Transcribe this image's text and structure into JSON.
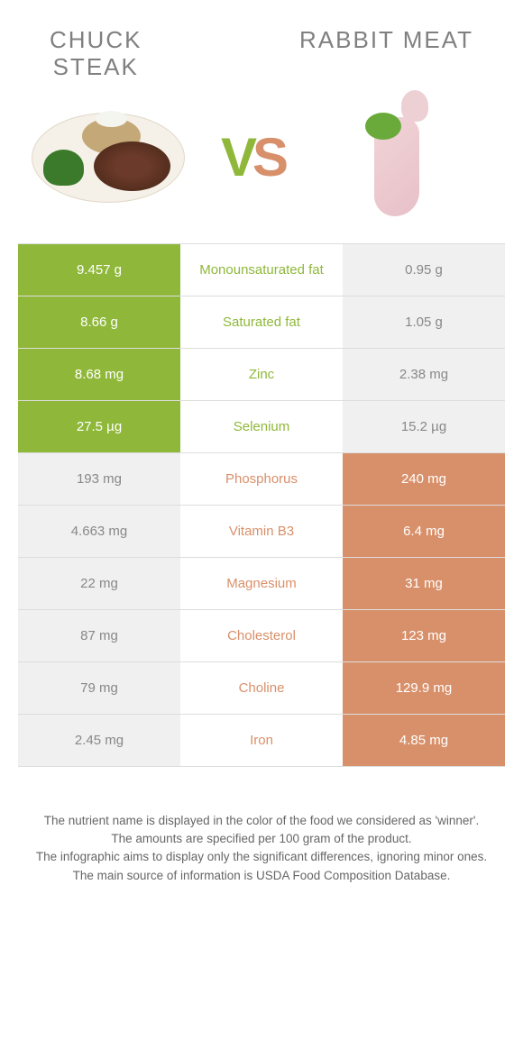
{
  "header": {
    "left_title_line1": "CHUCK",
    "left_title_line2": "STEAK",
    "right_title": "RABBIT MEAT",
    "vs_v": "V",
    "vs_s": "S"
  },
  "colors": {
    "left_color": "#8fb83a",
    "right_color": "#d8906a",
    "lightgray": "#f0f0f0",
    "text_gray": "#888888"
  },
  "rows": [
    {
      "nutrient": "Monounsaturated fat",
      "left": "9.457 g",
      "right": "0.95 g",
      "winner": "left"
    },
    {
      "nutrient": "Saturated fat",
      "left": "8.66 g",
      "right": "1.05 g",
      "winner": "left"
    },
    {
      "nutrient": "Zinc",
      "left": "8.68 mg",
      "right": "2.38 mg",
      "winner": "left"
    },
    {
      "nutrient": "Selenium",
      "left": "27.5 µg",
      "right": "15.2 µg",
      "winner": "left"
    },
    {
      "nutrient": "Phosphorus",
      "left": "193 mg",
      "right": "240 mg",
      "winner": "right"
    },
    {
      "nutrient": "Vitamin B3",
      "left": "4.663 mg",
      "right": "6.4 mg",
      "winner": "right"
    },
    {
      "nutrient": "Magnesium",
      "left": "22 mg",
      "right": "31 mg",
      "winner": "right"
    },
    {
      "nutrient": "Cholesterol",
      "left": "87 mg",
      "right": "123 mg",
      "winner": "right"
    },
    {
      "nutrient": "Choline",
      "left": "79 mg",
      "right": "129.9 mg",
      "winner": "right"
    },
    {
      "nutrient": "Iron",
      "left": "2.45 mg",
      "right": "4.85 mg",
      "winner": "right"
    }
  ],
  "footer": {
    "line1": "The nutrient name is displayed in the color of the food we considered as 'winner'.",
    "line2": "The amounts are specified per 100 gram of the product.",
    "line3": "The infographic aims to display only the significant differences, ignoring minor ones.",
    "line4": "The main source of information is USDA Food Composition Database."
  }
}
